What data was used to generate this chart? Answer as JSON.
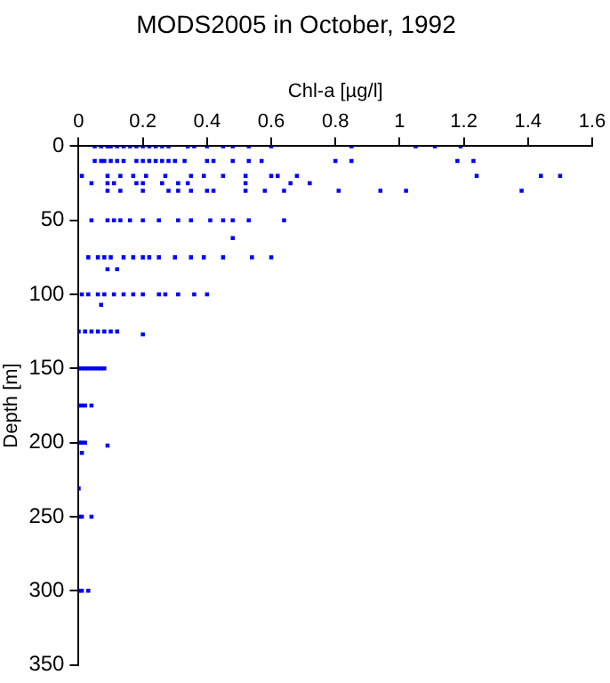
{
  "chart_data": {
    "type": "scatter",
    "title": "MODS2005 in October, 1992",
    "xlabel": "Chl-a [µg/l]",
    "ylabel": "Depth [m]",
    "xlim": [
      0,
      1.6
    ],
    "xticks": [
      0,
      0.2,
      0.4,
      0.6,
      0.8,
      1,
      1.2,
      1.4,
      1.6
    ],
    "ylim": [
      350,
      0
    ],
    "yticks": [
      0,
      50,
      100,
      150,
      200,
      250,
      300,
      350
    ],
    "grid": false,
    "legend": false,
    "marker": "square",
    "series": [
      {
        "color": "#0000ff",
        "x": [
          0.05,
          0.07,
          0.09,
          0.1,
          0.12,
          0.14,
          0.16,
          0.18,
          0.2,
          0.22,
          0.24,
          0.26,
          0.28,
          0.34,
          0.36,
          0.4,
          0.45,
          0.48,
          0.53,
          0.6,
          0.85,
          1.05,
          1.11,
          1.19,
          0.05,
          0.07,
          0.08,
          0.1,
          0.12,
          0.14,
          0.18,
          0.2,
          0.22,
          0.24,
          0.26,
          0.28,
          0.3,
          0.33,
          0.4,
          0.42,
          0.48,
          0.53,
          0.57,
          0.8,
          0.85,
          1.18,
          1.23,
          0.01,
          0.09,
          0.13,
          0.17,
          0.21,
          0.27,
          0.35,
          0.39,
          0.45,
          0.52,
          0.6,
          0.62,
          0.68,
          1.24,
          1.44,
          1.5,
          0.04,
          0.09,
          0.11,
          0.18,
          0.2,
          0.26,
          0.31,
          0.34,
          0.52,
          0.66,
          0.72,
          0.09,
          0.13,
          0.2,
          0.28,
          0.31,
          0.35,
          0.4,
          0.42,
          0.52,
          0.58,
          0.64,
          0.81,
          0.94,
          1.02,
          1.38,
          0.04,
          0.09,
          0.11,
          0.13,
          0.16,
          0.2,
          0.25,
          0.31,
          0.35,
          0.41,
          0.45,
          0.48,
          0.53,
          0.64,
          0.48,
          0.03,
          0.06,
          0.08,
          0.1,
          0.14,
          0.17,
          0.2,
          0.22,
          0.25,
          0.3,
          0.35,
          0.39,
          0.45,
          0.54,
          0.6,
          0.09,
          0.12,
          0.01,
          0.03,
          0.06,
          0.08,
          0.11,
          0.14,
          0.17,
          0.2,
          0.25,
          0.27,
          0.31,
          0.36,
          0.4,
          0.07,
          0,
          0.02,
          0.04,
          0.06,
          0.08,
          0.1,
          0.12,
          0.2,
          0,
          0.01,
          0.02,
          0.03,
          0.04,
          0.05,
          0.06,
          0.07,
          0.08,
          0,
          0.01,
          0.02,
          0.04,
          0,
          0.01,
          0.02,
          0.09,
          0.01,
          0,
          0,
          0.01,
          0.04,
          0,
          0.01,
          0.03
        ],
        "values": [
          0,
          0,
          0,
          0,
          0,
          0,
          0,
          0,
          0,
          0,
          0,
          0,
          0,
          0,
          0,
          0,
          0,
          0,
          0,
          0,
          0,
          0,
          0,
          0,
          10,
          10,
          10,
          10,
          10,
          10,
          10,
          10,
          10,
          10,
          10,
          10,
          10,
          10,
          10,
          10,
          10,
          10,
          10,
          10,
          10,
          10,
          10,
          20,
          20,
          20,
          20,
          20,
          20,
          20,
          20,
          20,
          20,
          20,
          20,
          20,
          20,
          20,
          20,
          25,
          25,
          25,
          25,
          25,
          25,
          25,
          25,
          25,
          25,
          25,
          30,
          30,
          30,
          30,
          30,
          30,
          30,
          30,
          30,
          30,
          30,
          30,
          30,
          30,
          30,
          50,
          50,
          50,
          50,
          50,
          50,
          50,
          50,
          50,
          50,
          50,
          50,
          50,
          50,
          62,
          75,
          75,
          75,
          75,
          75,
          75,
          75,
          75,
          75,
          75,
          75,
          75,
          75,
          75,
          75,
          83,
          83,
          100,
          100,
          100,
          100,
          100,
          100,
          100,
          100,
          100,
          100,
          100,
          100,
          100,
          107,
          125,
          125,
          125,
          125,
          125,
          125,
          125,
          127,
          150,
          150,
          150,
          150,
          150,
          150,
          150,
          150,
          150,
          175,
          175,
          175,
          175,
          200,
          200,
          200,
          202,
          207,
          231,
          250,
          250,
          250,
          300,
          300,
          300
        ]
      }
    ]
  }
}
